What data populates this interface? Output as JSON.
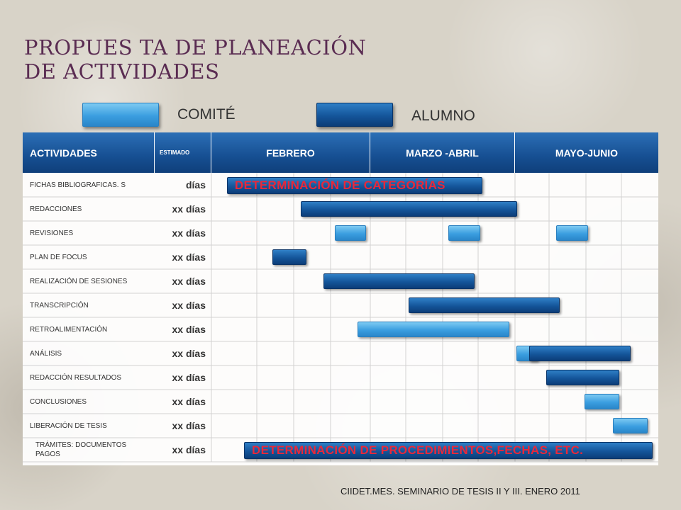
{
  "title": {
    "line1": "PROPUES TA DE PLANEACIÓN",
    "line2": "DE ACTIVIDADES"
  },
  "legend": {
    "committee": {
      "label": "COMITÉ",
      "color": "#3b9ee0"
    },
    "student": {
      "label": "ALUMNO",
      "color": "#14559a"
    }
  },
  "table": {
    "headers": {
      "activities": "ACTIVIDADES",
      "estimated": "ESTIMADO",
      "months": [
        "FEBRERO",
        "MARZO -ABRIL",
        "MAYO-JUNIO"
      ]
    },
    "rows": [
      {
        "activity": "FICHAS BIBLIOGRAFICAS. S",
        "estimate": "días"
      },
      {
        "activity": "REDACCIONES",
        "estimate": "xx días"
      },
      {
        "activity": "REVISIONES",
        "estimate": "xx días"
      },
      {
        "activity": "PLAN DE FOCUS",
        "estimate": "xx días"
      },
      {
        "activity": "REALIZACIÓN DE  SESIONES",
        "estimate": "xx días"
      },
      {
        "activity": "TRANSCRIPCIÓN",
        "estimate": "xx días"
      },
      {
        "activity": "RETROALIMENTACIÓN",
        "estimate": "xx días"
      },
      {
        "activity": "ANÁLISIS",
        "estimate": "xx días"
      },
      {
        "activity": "REDACCIÓN  RESULTADOS",
        "estimate": "xx días"
      },
      {
        "activity": "CONCLUSIONES",
        "estimate": "xx días"
      },
      {
        "activity": "LIBERACIÓN DE TESIS",
        "estimate": "xx días"
      },
      {
        "activity": "TRÁMITES:  DOCUMENTOS PAGOS",
        "estimate": "xx días"
      }
    ],
    "banners": {
      "categories": "DETERMINACIÓN DE CATEGORÍAS",
      "procedures": "DETERMINACIÓN DE PROCEDIMIENTOS,FECHAS, ETC."
    }
  },
  "footer": "CIIDET.MES. SEMINARIO DE TESIS  II Y III. ENERO 2011"
}
